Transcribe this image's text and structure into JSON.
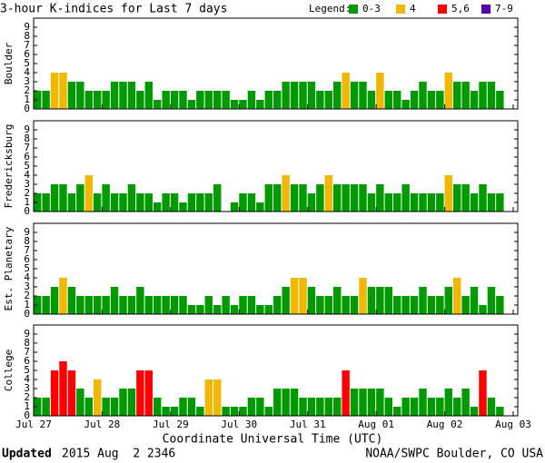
{
  "title": "3-hour K-indices for Last 7 days",
  "legend": {
    "title": "Legend:",
    "items": [
      {
        "label": "0-3",
        "color": "#009900"
      },
      {
        "label": "4",
        "color": "#f0b800"
      },
      {
        "label": "5,6",
        "color": "#ff0000"
      },
      {
        "label": "7-9",
        "color": "#5500aa"
      }
    ]
  },
  "k_colors": [
    "#009900",
    "#009900",
    "#009900",
    "#009900",
    "#f0b800",
    "#ff0000",
    "#ff0000",
    "#5500aa",
    "#5500aa",
    "#5500aa"
  ],
  "x_axis": {
    "labels": [
      "Jul 27",
      "Jul 28",
      "Jul 29",
      "Jul 30",
      "Jul 31",
      "Aug 01",
      "Aug 02",
      "Aug 03"
    ],
    "label": "Coordinate Universal Time (UTC)"
  },
  "chart_data": [
    {
      "type": "bar",
      "ylabel": "Boulder",
      "ylim": [
        0,
        10
      ],
      "yticks": [
        0,
        1,
        2,
        3,
        4,
        5,
        6,
        7,
        8,
        9
      ],
      "values": [
        2,
        2,
        4,
        4,
        3,
        3,
        2,
        2,
        2,
        3,
        3,
        3,
        2,
        3,
        1,
        2,
        2,
        2,
        1,
        2,
        2,
        2,
        2,
        1,
        1,
        2,
        1,
        2,
        2,
        3,
        3,
        3,
        3,
        2,
        2,
        3,
        4,
        3,
        3,
        2,
        4,
        2,
        2,
        1,
        2,
        3,
        2,
        2,
        4,
        3,
        3,
        2,
        3,
        3,
        2,
        0
      ]
    },
    {
      "type": "bar",
      "ylabel": "Fredericksburg",
      "ylim": [
        0,
        10
      ],
      "yticks": [
        0,
        1,
        2,
        3,
        4,
        5,
        6,
        7,
        8,
        9
      ],
      "values": [
        2,
        2,
        3,
        3,
        2,
        3,
        4,
        2,
        3,
        2,
        2,
        3,
        2,
        2,
        1,
        2,
        2,
        1,
        2,
        2,
        2,
        3,
        0,
        1,
        2,
        2,
        1,
        3,
        3,
        4,
        3,
        3,
        2,
        3,
        4,
        3,
        3,
        3,
        3,
        2,
        3,
        2,
        2,
        3,
        2,
        2,
        2,
        2,
        4,
        3,
        3,
        2,
        3,
        2,
        2,
        0
      ]
    },
    {
      "type": "bar",
      "ylabel": "Est. Planetary",
      "ylim": [
        0,
        10
      ],
      "yticks": [
        0,
        1,
        2,
        3,
        4,
        5,
        6,
        7,
        8,
        9
      ],
      "values": [
        2,
        2,
        3,
        4,
        3,
        2,
        2,
        2,
        2,
        3,
        2,
        2,
        3,
        2,
        2,
        2,
        2,
        2,
        1,
        1,
        2,
        1,
        2,
        1,
        2,
        2,
        1,
        1,
        2,
        3,
        4,
        4,
        3,
        2,
        2,
        3,
        2,
        2,
        4,
        3,
        3,
        3,
        2,
        2,
        2,
        3,
        2,
        2,
        3,
        4,
        2,
        3,
        1,
        3,
        2,
        0
      ]
    },
    {
      "type": "bar",
      "ylabel": "College",
      "ylim": [
        0,
        10
      ],
      "yticks": [
        0,
        1,
        2,
        3,
        4,
        5,
        6,
        7,
        8,
        9
      ],
      "values": [
        2,
        2,
        5,
        6,
        5,
        3,
        2,
        4,
        2,
        2,
        3,
        3,
        5,
        5,
        2,
        1,
        1,
        2,
        2,
        1,
        4,
        4,
        1,
        1,
        1,
        2,
        2,
        1,
        3,
        3,
        3,
        2,
        2,
        2,
        2,
        2,
        5,
        3,
        3,
        3,
        3,
        2,
        1,
        2,
        2,
        3,
        2,
        2,
        3,
        2,
        3,
        1,
        5,
        2,
        1,
        0
      ]
    }
  ],
  "footer": {
    "updated_label": "Updated",
    "updated": "2015 Aug  2 2346",
    "credit": "NOAA/SWPC Boulder, CO USA"
  }
}
